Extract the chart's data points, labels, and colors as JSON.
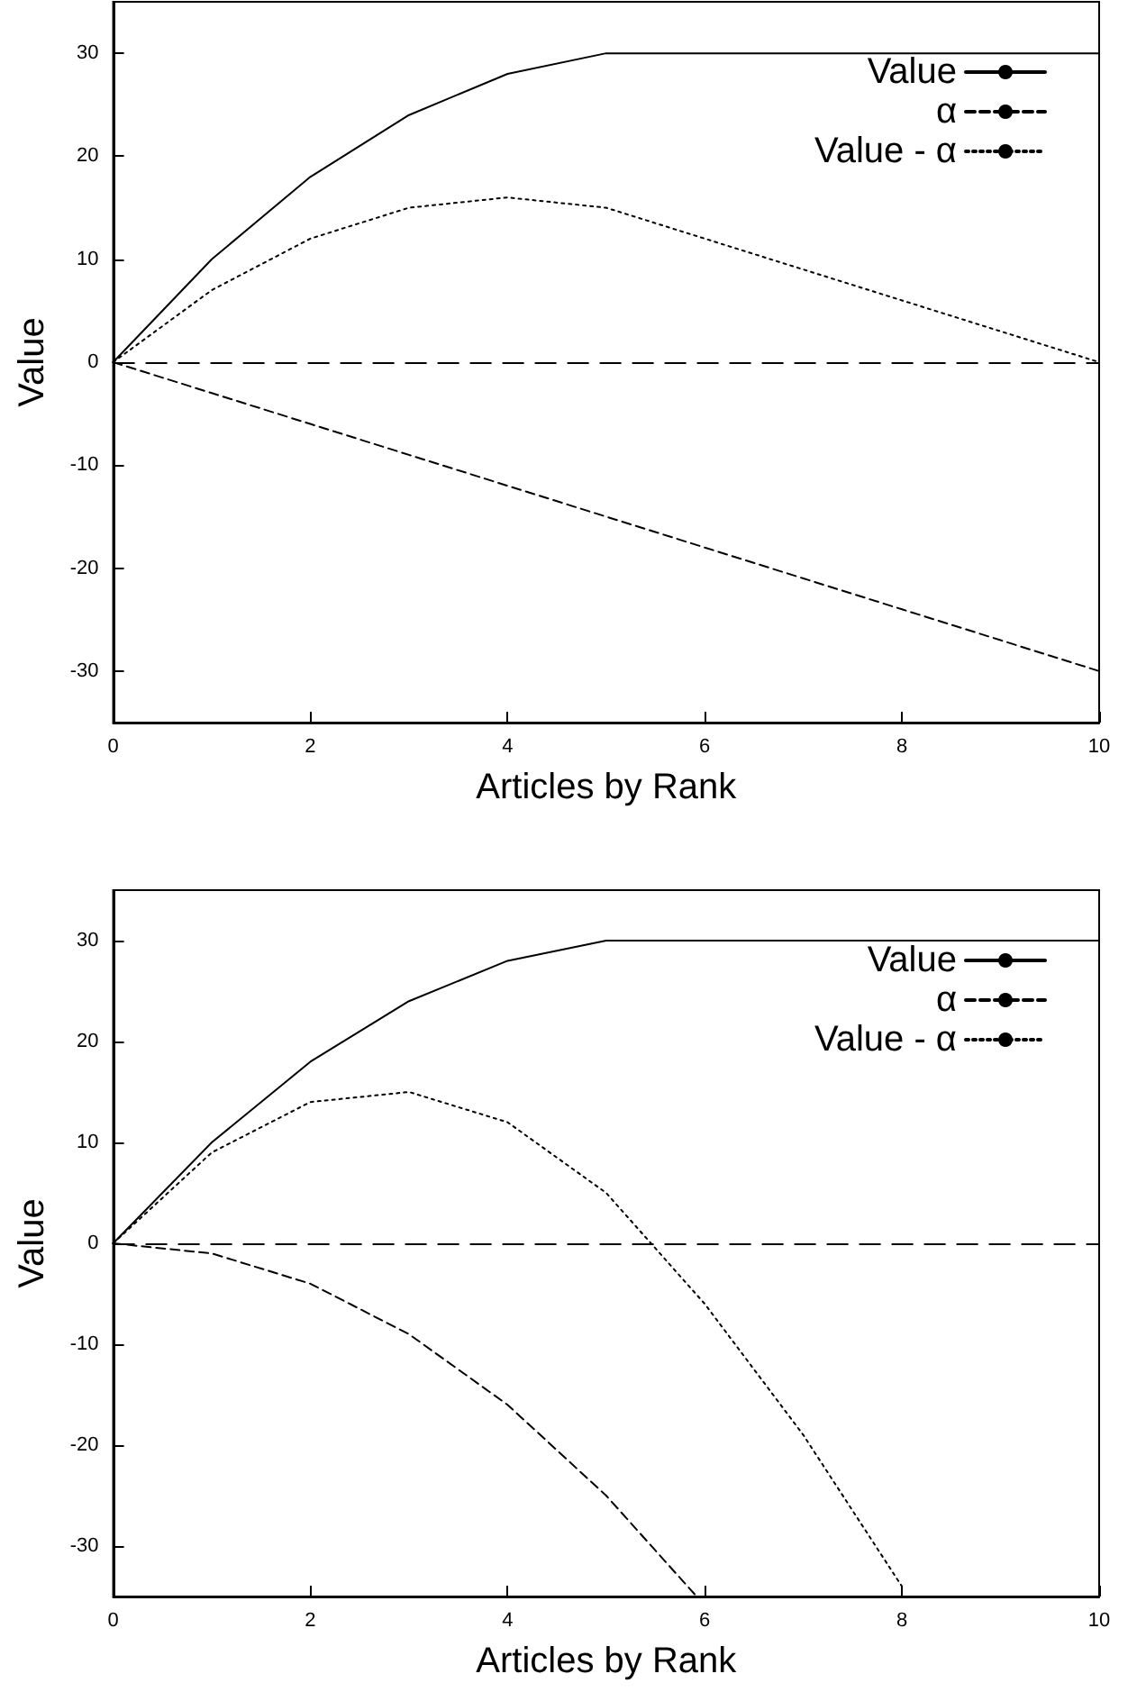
{
  "chart_data": [
    {
      "type": "line",
      "xlabel": "Articles by Rank",
      "ylabel": "Value",
      "xlim": [
        0,
        10
      ],
      "xticks": [
        0,
        2,
        4,
        6,
        8,
        10
      ],
      "ylim": [
        -35,
        35
      ],
      "yticks": [
        -30,
        -20,
        -10,
        0,
        10,
        20,
        30
      ],
      "legend": "top right",
      "grid": false,
      "marker": "none",
      "ref_lines": [
        {
          "axis": "y",
          "value": 0,
          "color": "#000000",
          "line_style": "dashed"
        }
      ],
      "series": [
        {
          "name": "Value",
          "color": "#000000",
          "line_style": "solid",
          "x": [
            0,
            1,
            2,
            3,
            4,
            5,
            6,
            7,
            8,
            9,
            10
          ],
          "values": [
            0,
            10,
            18,
            24,
            28,
            30,
            30,
            30,
            30,
            30,
            30
          ]
        },
        {
          "name": "α",
          "color": "#000000",
          "line_style": "dashed",
          "x": [
            0,
            1,
            2,
            3,
            4,
            5,
            6,
            7,
            8,
            9,
            10
          ],
          "values": [
            0,
            -3,
            -6,
            -9,
            -12,
            -15,
            -18,
            -21,
            -24,
            -27,
            -30
          ]
        },
        {
          "name": "Value - α",
          "color": "#000000",
          "line_style": "dotted",
          "x": [
            0,
            1,
            2,
            3,
            4,
            5,
            6,
            7,
            8,
            9,
            10
          ],
          "values": [
            0,
            7,
            12,
            15,
            16,
            15,
            12,
            9,
            6,
            3,
            0
          ]
        }
      ]
    },
    {
      "type": "line",
      "xlabel": "Articles by Rank",
      "ylabel": "Value",
      "xlim": [
        0,
        10
      ],
      "xticks": [
        0,
        2,
        4,
        6,
        8,
        10
      ],
      "ylim": [
        -35,
        35
      ],
      "yticks": [
        -30,
        -20,
        -10,
        0,
        10,
        20,
        30
      ],
      "legend": "top right",
      "grid": false,
      "marker": "none",
      "ref_lines": [
        {
          "axis": "y",
          "value": 0,
          "color": "#000000",
          "line_style": "dashed"
        }
      ],
      "series": [
        {
          "name": "Value",
          "color": "#000000",
          "line_style": "solid",
          "x": [
            0,
            1,
            2,
            3,
            4,
            5,
            6,
            7,
            8,
            9,
            10
          ],
          "values": [
            0,
            10,
            18,
            24,
            28,
            30,
            30,
            30,
            30,
            30,
            30
          ]
        },
        {
          "name": "α",
          "color": "#000000",
          "line_style": "dashed",
          "x": [
            0,
            1,
            2,
            3,
            4,
            5,
            5.9
          ],
          "values": [
            0,
            -1,
            -4,
            -9,
            -16,
            -25,
            -34.8
          ]
        },
        {
          "name": "Value - α",
          "color": "#000000",
          "line_style": "dotted",
          "x": [
            0,
            1,
            2,
            3,
            4,
            5,
            6,
            7,
            8
          ],
          "values": [
            0,
            9,
            14,
            15,
            12,
            5,
            -6,
            -19,
            -34
          ]
        }
      ]
    }
  ]
}
